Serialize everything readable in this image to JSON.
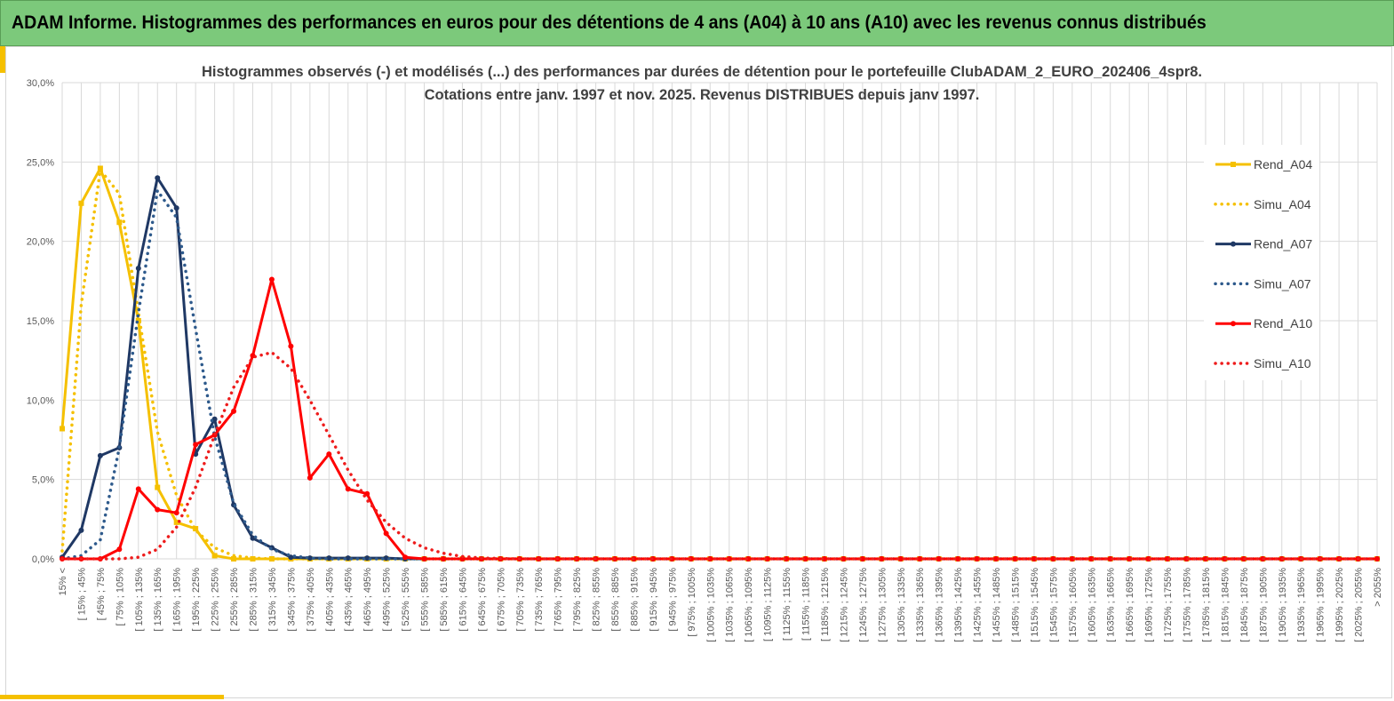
{
  "banner": {
    "title": "ADAM Informe. Histogrammes des performances en euros pour des détentions de 4 ans (A04) à 10 ans (A10) avec les revenus connus distribués",
    "background": "#7cc97b"
  },
  "colors": {
    "accent": "#f5c000",
    "grid": "#d9d9d9",
    "axis_text": "#595959",
    "title_text": "#404040"
  },
  "chart_data": {
    "type": "line",
    "title_lines": [
      "Histogrammes observés (-) et modélisés (...) des performances par durées de détention pour  le portefeuille ClubADAM_2_EURO_202406_4spr8.",
      "Cotations entre janv. 1997 et nov. 2025. Revenus DISTRIBUES depuis janv 1997."
    ],
    "y_ticks": [
      "0,0%",
      "5,0%",
      "10,0%",
      "15,0%",
      "20,0%",
      "25,0%",
      "30,0%"
    ],
    "ylim": [
      0,
      30
    ],
    "grid": true,
    "legend_position": "right",
    "x": [
      "15% <",
      "[ 15% ; 45%",
      "[ 45% ; 75%",
      "[ 75% ; 105%",
      "[ 105% ; 135%",
      "[ 135% ; 165%",
      "[ 165% ; 195%",
      "[ 195% ; 225%",
      "[ 225% ; 255%",
      "[ 255% ; 285%",
      "[ 285% ; 315%",
      "[ 315% ; 345%",
      "[ 345% ; 375%",
      "[ 375% ; 405%",
      "[ 405% ; 435%",
      "[ 435% ; 465%",
      "[ 465% ; 495%",
      "[ 495% ; 525%",
      "[ 525% ; 555%",
      "[ 555% ; 585%",
      "[ 585% ; 615%",
      "[ 615% ; 645%",
      "[ 645% ; 675%",
      "[ 675% ; 705%",
      "[ 705% ; 735%",
      "[ 735% ; 765%",
      "[ 765% ; 795%",
      "[ 795% ; 825%",
      "[ 825% ; 855%",
      "[ 855% ; 885%",
      "[ 885% ; 915%",
      "[ 915% ; 945%",
      "[ 945% ; 975%",
      "[ 975% ; 1005%",
      "[ 1005% ; 1035%",
      "[ 1035% ; 1065%",
      "[ 1065% ; 1095%",
      "[ 1095% ; 1125%",
      "[ 1125% ; 1155%",
      "[ 1155% ; 1185%",
      "[ 1185% ; 1215%",
      "[ 1215% ; 1245%",
      "[ 1245% ; 1275%",
      "[ 1275% ; 1305%",
      "[ 1305% ; 1335%",
      "[ 1335% ; 1365%",
      "[ 1365% ; 1395%",
      "[ 1395% ; 1425%",
      "[ 1425% ; 1455%",
      "[ 1455% ; 1485%",
      "[ 1485% ; 1515%",
      "[ 1515% ; 1545%",
      "[ 1545% ; 1575%",
      "[ 1575% ; 1605%",
      "[ 1605% ; 1635%",
      "[ 1635% ; 1665%",
      "[ 1665% ; 1695%",
      "[ 1695% ; 1725%",
      "[ 1725% ; 1755%",
      "[ 1755% ; 1785%",
      "[ 1785% ; 1815%",
      "[ 1815% ; 1845%",
      "[ 1845% ; 1875%",
      "[ 1875% ; 1905%",
      "[ 1905% ; 1935%",
      "[ 1935% ; 1965%",
      "[ 1965% ; 1995%",
      "[ 1995% ; 2025%",
      "[ 2025% ; 2055%",
      "> 2055%"
    ],
    "series": [
      {
        "name": "Rend_A04",
        "style": "solid",
        "markers": "square",
        "color": "#f5c000",
        "values": [
          8.2,
          22.4,
          24.6,
          21.2,
          15.0,
          4.5,
          2.3,
          1.9,
          0.2,
          0,
          0,
          0,
          0,
          0,
          0,
          0,
          0,
          0,
          0,
          0,
          0,
          0,
          0,
          0,
          0,
          0,
          0,
          0,
          0,
          0,
          0,
          0,
          0,
          0,
          0,
          0,
          0,
          0,
          0,
          0,
          0,
          0,
          0,
          0,
          0,
          0,
          0,
          0,
          0,
          0,
          0,
          0,
          0,
          0,
          0,
          0,
          0,
          0,
          0,
          0,
          0,
          0,
          0,
          0,
          0,
          0,
          0,
          0,
          0,
          0
        ]
      },
      {
        "name": "Simu_A04",
        "style": "dotted",
        "markers": "none",
        "color": "#f5c000",
        "values": [
          0.5,
          16.0,
          24.5,
          23.0,
          15.5,
          8.0,
          4.0,
          1.8,
          0.7,
          0.2,
          0.05,
          0,
          0,
          0,
          0,
          0,
          0,
          0,
          0,
          0,
          0,
          0,
          0,
          0,
          0,
          0,
          0,
          0,
          0,
          0,
          0,
          0,
          0,
          0,
          0,
          0,
          0,
          0,
          0,
          0,
          0,
          0,
          0,
          0,
          0,
          0,
          0,
          0,
          0,
          0,
          0,
          0,
          0,
          0,
          0,
          0,
          0,
          0,
          0,
          0,
          0,
          0,
          0,
          0,
          0,
          0,
          0,
          0,
          0,
          0
        ]
      },
      {
        "name": "Rend_A07",
        "style": "solid",
        "markers": "circle",
        "color": "#1f3864",
        "values": [
          0.1,
          1.8,
          6.5,
          7.0,
          18.3,
          24.0,
          22.1,
          6.6,
          8.8,
          3.4,
          1.3,
          0.7,
          0.1,
          0.05,
          0.05,
          0.05,
          0.05,
          0.05,
          0,
          0,
          0,
          0,
          0,
          0,
          0,
          0,
          0,
          0,
          0,
          0,
          0,
          0,
          0,
          0,
          0,
          0,
          0,
          0,
          0,
          0,
          0,
          0,
          0,
          0,
          0,
          0,
          0,
          0,
          0,
          0,
          0,
          0,
          0,
          0,
          0,
          0,
          0,
          0,
          0,
          0,
          0,
          0,
          0,
          0,
          0,
          0,
          0,
          0,
          0,
          0
        ]
      },
      {
        "name": "Simu_A07",
        "style": "dotted",
        "markers": "none",
        "color": "#2e5a8c",
        "values": [
          0,
          0.2,
          1.2,
          7.0,
          15.5,
          23.2,
          21.5,
          14.5,
          7.7,
          3.5,
          1.5,
          0.6,
          0.2,
          0.05,
          0,
          0,
          0,
          0,
          0,
          0,
          0,
          0,
          0,
          0,
          0,
          0,
          0,
          0,
          0,
          0,
          0,
          0,
          0,
          0,
          0,
          0,
          0,
          0,
          0,
          0,
          0,
          0,
          0,
          0,
          0,
          0,
          0,
          0,
          0,
          0,
          0,
          0,
          0,
          0,
          0,
          0,
          0,
          0,
          0,
          0,
          0,
          0,
          0,
          0,
          0,
          0,
          0,
          0,
          0,
          0
        ]
      },
      {
        "name": "Rend_A10",
        "style": "solid",
        "markers": "circle",
        "color": "#ff0000",
        "values": [
          0,
          0,
          0,
          0.6,
          4.4,
          3.1,
          2.9,
          7.2,
          7.8,
          9.3,
          12.8,
          17.6,
          13.4,
          5.1,
          6.6,
          4.4,
          4.1,
          1.6,
          0.1,
          0,
          0,
          0,
          0,
          0,
          0,
          0,
          0,
          0,
          0,
          0,
          0,
          0,
          0,
          0,
          0,
          0,
          0,
          0,
          0,
          0,
          0,
          0,
          0,
          0,
          0,
          0,
          0,
          0,
          0,
          0,
          0,
          0,
          0,
          0,
          0,
          0,
          0,
          0,
          0,
          0,
          0,
          0,
          0,
          0,
          0,
          0,
          0,
          0,
          0,
          0
        ]
      },
      {
        "name": "Simu_A10",
        "style": "dotted",
        "markers": "none",
        "color": "#ee1c1c",
        "values": [
          0,
          0,
          0,
          0,
          0.1,
          0.6,
          2.0,
          4.5,
          7.8,
          10.8,
          12.7,
          13.0,
          12.0,
          10.0,
          7.8,
          5.6,
          3.7,
          2.3,
          1.3,
          0.7,
          0.35,
          0.15,
          0.05,
          0.02,
          0,
          0,
          0,
          0,
          0,
          0,
          0,
          0,
          0,
          0,
          0,
          0,
          0,
          0,
          0,
          0,
          0,
          0,
          0,
          0,
          0,
          0,
          0,
          0,
          0,
          0,
          0,
          0,
          0,
          0,
          0,
          0,
          0,
          0,
          0,
          0,
          0,
          0,
          0,
          0,
          0,
          0,
          0,
          0,
          0,
          0
        ]
      }
    ]
  }
}
